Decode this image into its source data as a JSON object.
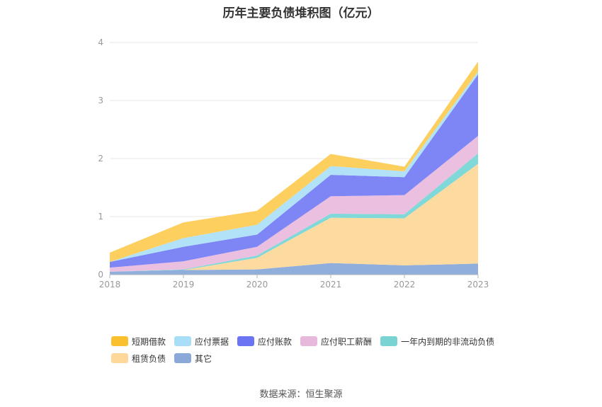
{
  "chart_data": {
    "type": "area",
    "stacked": true,
    "title": "历年主要负债堆积图（亿元）",
    "categories": [
      "2018",
      "2019",
      "2020",
      "2021",
      "2022",
      "2023"
    ],
    "ylim": [
      0,
      4
    ],
    "yticks": [
      "0",
      "1",
      "2",
      "3",
      "4"
    ],
    "grid": true,
    "legend_position": "bottom",
    "series": [
      {
        "name": "其它",
        "color": "#90aedb",
        "values": [
          0.05,
          0.08,
          0.09,
          0.2,
          0.16,
          0.19
        ]
      },
      {
        "name": "租赁负债",
        "color": "#fddba0",
        "values": [
          0.0,
          0.0,
          0.2,
          0.78,
          0.81,
          1.72
        ]
      },
      {
        "name": "一年内到期的非流动负债",
        "color": "#80d8d8",
        "values": [
          0.0,
          0.01,
          0.04,
          0.07,
          0.07,
          0.18
        ]
      },
      {
        "name": "应付职工薪酬",
        "color": "#eabfdf",
        "values": [
          0.07,
          0.14,
          0.15,
          0.3,
          0.33,
          0.3
        ]
      },
      {
        "name": "应付账款",
        "color": "#7e86f5",
        "values": [
          0.1,
          0.25,
          0.21,
          0.37,
          0.31,
          1.06
        ]
      },
      {
        "name": "应付票据",
        "color": "#b2e2f8",
        "values": [
          0.0,
          0.15,
          0.17,
          0.15,
          0.1,
          0.05
        ]
      },
      {
        "name": "短期借款",
        "color": "#fdcf5e",
        "values": [
          0.16,
          0.27,
          0.24,
          0.21,
          0.08,
          0.17
        ]
      }
    ]
  },
  "legend": {
    "row1": [
      {
        "label": "短期借款",
        "color": "#fbc02d"
      },
      {
        "label": "应付票据",
        "color": "#a8def8"
      },
      {
        "label": "应付账款",
        "color": "#6b74f3"
      },
      {
        "label": "应付职工薪酬",
        "color": "#e8b8dc"
      },
      {
        "label": "一年内到期的非流动负债",
        "color": "#79d3d3"
      }
    ],
    "row2": [
      {
        "label": "租赁负债",
        "color": "#fdd89a"
      },
      {
        "label": "其它",
        "color": "#8aa9d8"
      }
    ]
  },
  "footer": {
    "source": "数据来源：恒生聚源"
  }
}
